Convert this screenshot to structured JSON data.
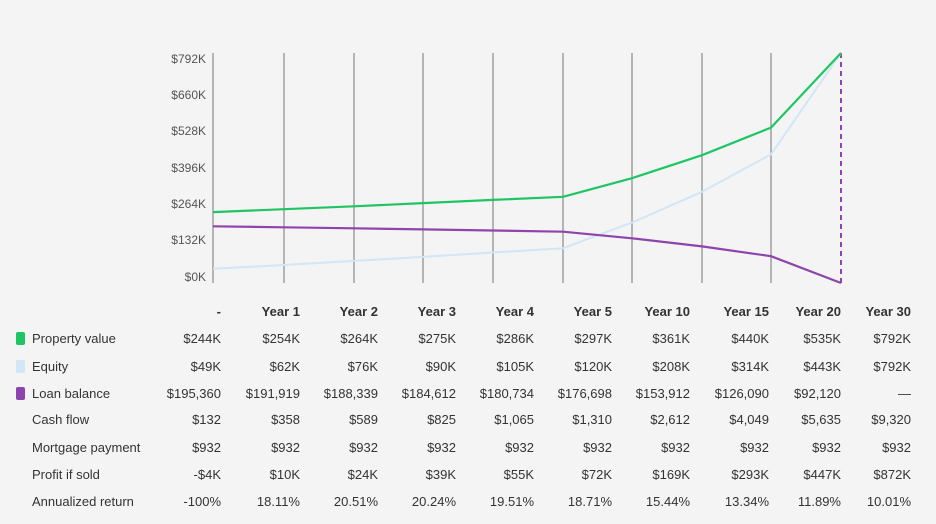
{
  "chart_data": {
    "type": "line",
    "x": [
      "-",
      "Year 1",
      "Year 2",
      "Year 3",
      "Year 4",
      "Year 5",
      "Year 10",
      "Year 15",
      "Year 20",
      "Year 30"
    ],
    "ylim": [
      0,
      792
    ],
    "y_ticks": [
      "$0K",
      "$132K",
      "$264K",
      "$396K",
      "$528K",
      "$660K",
      "$792K"
    ],
    "grid": "vertical",
    "series": [
      {
        "name": "Property value",
        "color": "#1ec663",
        "values": [
          244,
          254,
          264,
          275,
          286,
          297,
          361,
          440,
          535,
          792
        ]
      },
      {
        "name": "Equity",
        "color": "#d2e6f5",
        "values": [
          49,
          62,
          76,
          90,
          105,
          120,
          208,
          314,
          443,
          792
        ]
      },
      {
        "name": "Loan balance",
        "color": "#8e44ad",
        "values": [
          195.36,
          191.919,
          188.339,
          184.612,
          180.734,
          176.698,
          153.912,
          126.09,
          92.12,
          0
        ]
      }
    ]
  },
  "table": {
    "headers": [
      "-",
      "Year 1",
      "Year 2",
      "Year 3",
      "Year 4",
      "Year 5",
      "Year 10",
      "Year 15",
      "Year 20",
      "Year 30"
    ],
    "rows": [
      {
        "label": "Property value",
        "swatch": "#1ec663",
        "cells": [
          "$244K",
          "$254K",
          "$264K",
          "$275K",
          "$286K",
          "$297K",
          "$361K",
          "$440K",
          "$535K",
          "$792K"
        ]
      },
      {
        "label": "Equity",
        "swatch": "#d2e6f5",
        "cells": [
          "$49K",
          "$62K",
          "$76K",
          "$90K",
          "$105K",
          "$120K",
          "$208K",
          "$314K",
          "$443K",
          "$792K"
        ]
      },
      {
        "label": "Loan balance",
        "swatch": "#8e44ad",
        "cells": [
          "$195,360",
          "$191,919",
          "$188,339",
          "$184,612",
          "$180,734",
          "$176,698",
          "$153,912",
          "$126,090",
          "$92,120",
          "—"
        ]
      },
      {
        "label": "Cash flow",
        "swatch": "",
        "cells": [
          "$132",
          "$358",
          "$589",
          "$825",
          "$1,065",
          "$1,310",
          "$2,612",
          "$4,049",
          "$5,635",
          "$9,320"
        ]
      },
      {
        "label": "Mortgage payment",
        "swatch": "",
        "cells": [
          "$932",
          "$932",
          "$932",
          "$932",
          "$932",
          "$932",
          "$932",
          "$932",
          "$932",
          "$932"
        ]
      },
      {
        "label": "Profit if sold",
        "swatch": "",
        "cells": [
          "-$4K",
          "$10K",
          "$24K",
          "$39K",
          "$55K",
          "$72K",
          "$169K",
          "$293K",
          "$447K",
          "$872K"
        ]
      },
      {
        "label": "Annualized return",
        "swatch": "",
        "cells": [
          "-100%",
          "18.11%",
          "20.51%",
          "20.24%",
          "19.51%",
          "18.71%",
          "15.44%",
          "13.34%",
          "11.89%",
          "10.01%"
        ]
      }
    ]
  }
}
